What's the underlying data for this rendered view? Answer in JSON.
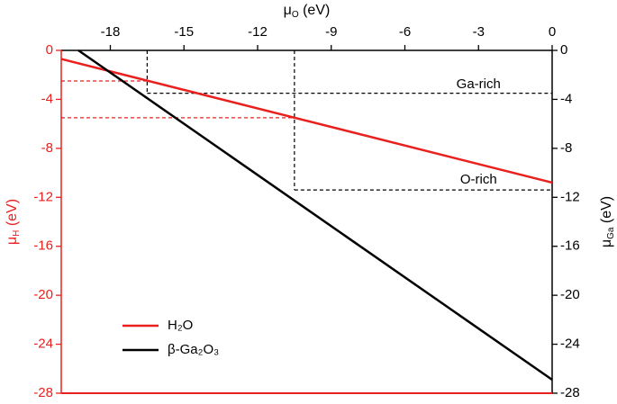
{
  "chart_data": {
    "type": "line",
    "x_label": {
      "base": "μ",
      "sub": "O",
      "unit": " (eV)"
    },
    "y_label": {
      "base": "μ",
      "sub": "H",
      "unit": " (eV)",
      "color": "#e8201e"
    },
    "y2_label": {
      "base": "μ",
      "sub": "Ga",
      "unit": " (eV)"
    },
    "xlim": [
      -20,
      0
    ],
    "xticks": [
      -18,
      -15,
      -12,
      -9,
      -6,
      -3,
      0
    ],
    "ylim": [
      -28,
      0
    ],
    "yticks": [
      0,
      -4,
      -8,
      -12,
      -16,
      -20,
      -24,
      -28
    ],
    "y2lim": [
      -28,
      0
    ],
    "y2ticks": [
      0,
      -4,
      -8,
      -12,
      -16,
      -20,
      -24,
      -28
    ],
    "series": [
      {
        "name": "H₂O",
        "color": "#e8201e",
        "x": [
          -20,
          0
        ],
        "values": [
          -0.7,
          -10.8
        ]
      },
      {
        "name": "β-Ga₂O₃",
        "color": "#000000",
        "axis": "y2",
        "x": [
          -19.3,
          0
        ],
        "values": [
          0,
          -26.9
        ]
      }
    ],
    "guides": [
      {
        "color": "#000000",
        "x": [
          -16.5,
          -16.5
        ],
        "values": [
          0,
          -3.5
        ]
      },
      {
        "color": "#e8201e",
        "x": [
          -20,
          -16.5
        ],
        "values": [
          -2.5,
          -2.5
        ]
      },
      {
        "color": "#000000",
        "x": [
          -16.5,
          0
        ],
        "values": [
          -3.5,
          -3.5
        ]
      },
      {
        "color": "#000000",
        "x": [
          -10.5,
          -10.5
        ],
        "values": [
          0,
          -11.4
        ]
      },
      {
        "color": "#e8201e",
        "x": [
          -20,
          -10.5
        ],
        "values": [
          -5.5,
          -5.5
        ]
      },
      {
        "color": "#000000",
        "x": [
          -10.5,
          0
        ],
        "values": [
          -11.4,
          -11.4
        ]
      }
    ],
    "annotations": [
      {
        "text": "Ga-rich",
        "x": -3,
        "y": -2.8
      },
      {
        "text": "O-rich",
        "x": -3,
        "y": -10.6
      }
    ],
    "legend": "lower left"
  }
}
